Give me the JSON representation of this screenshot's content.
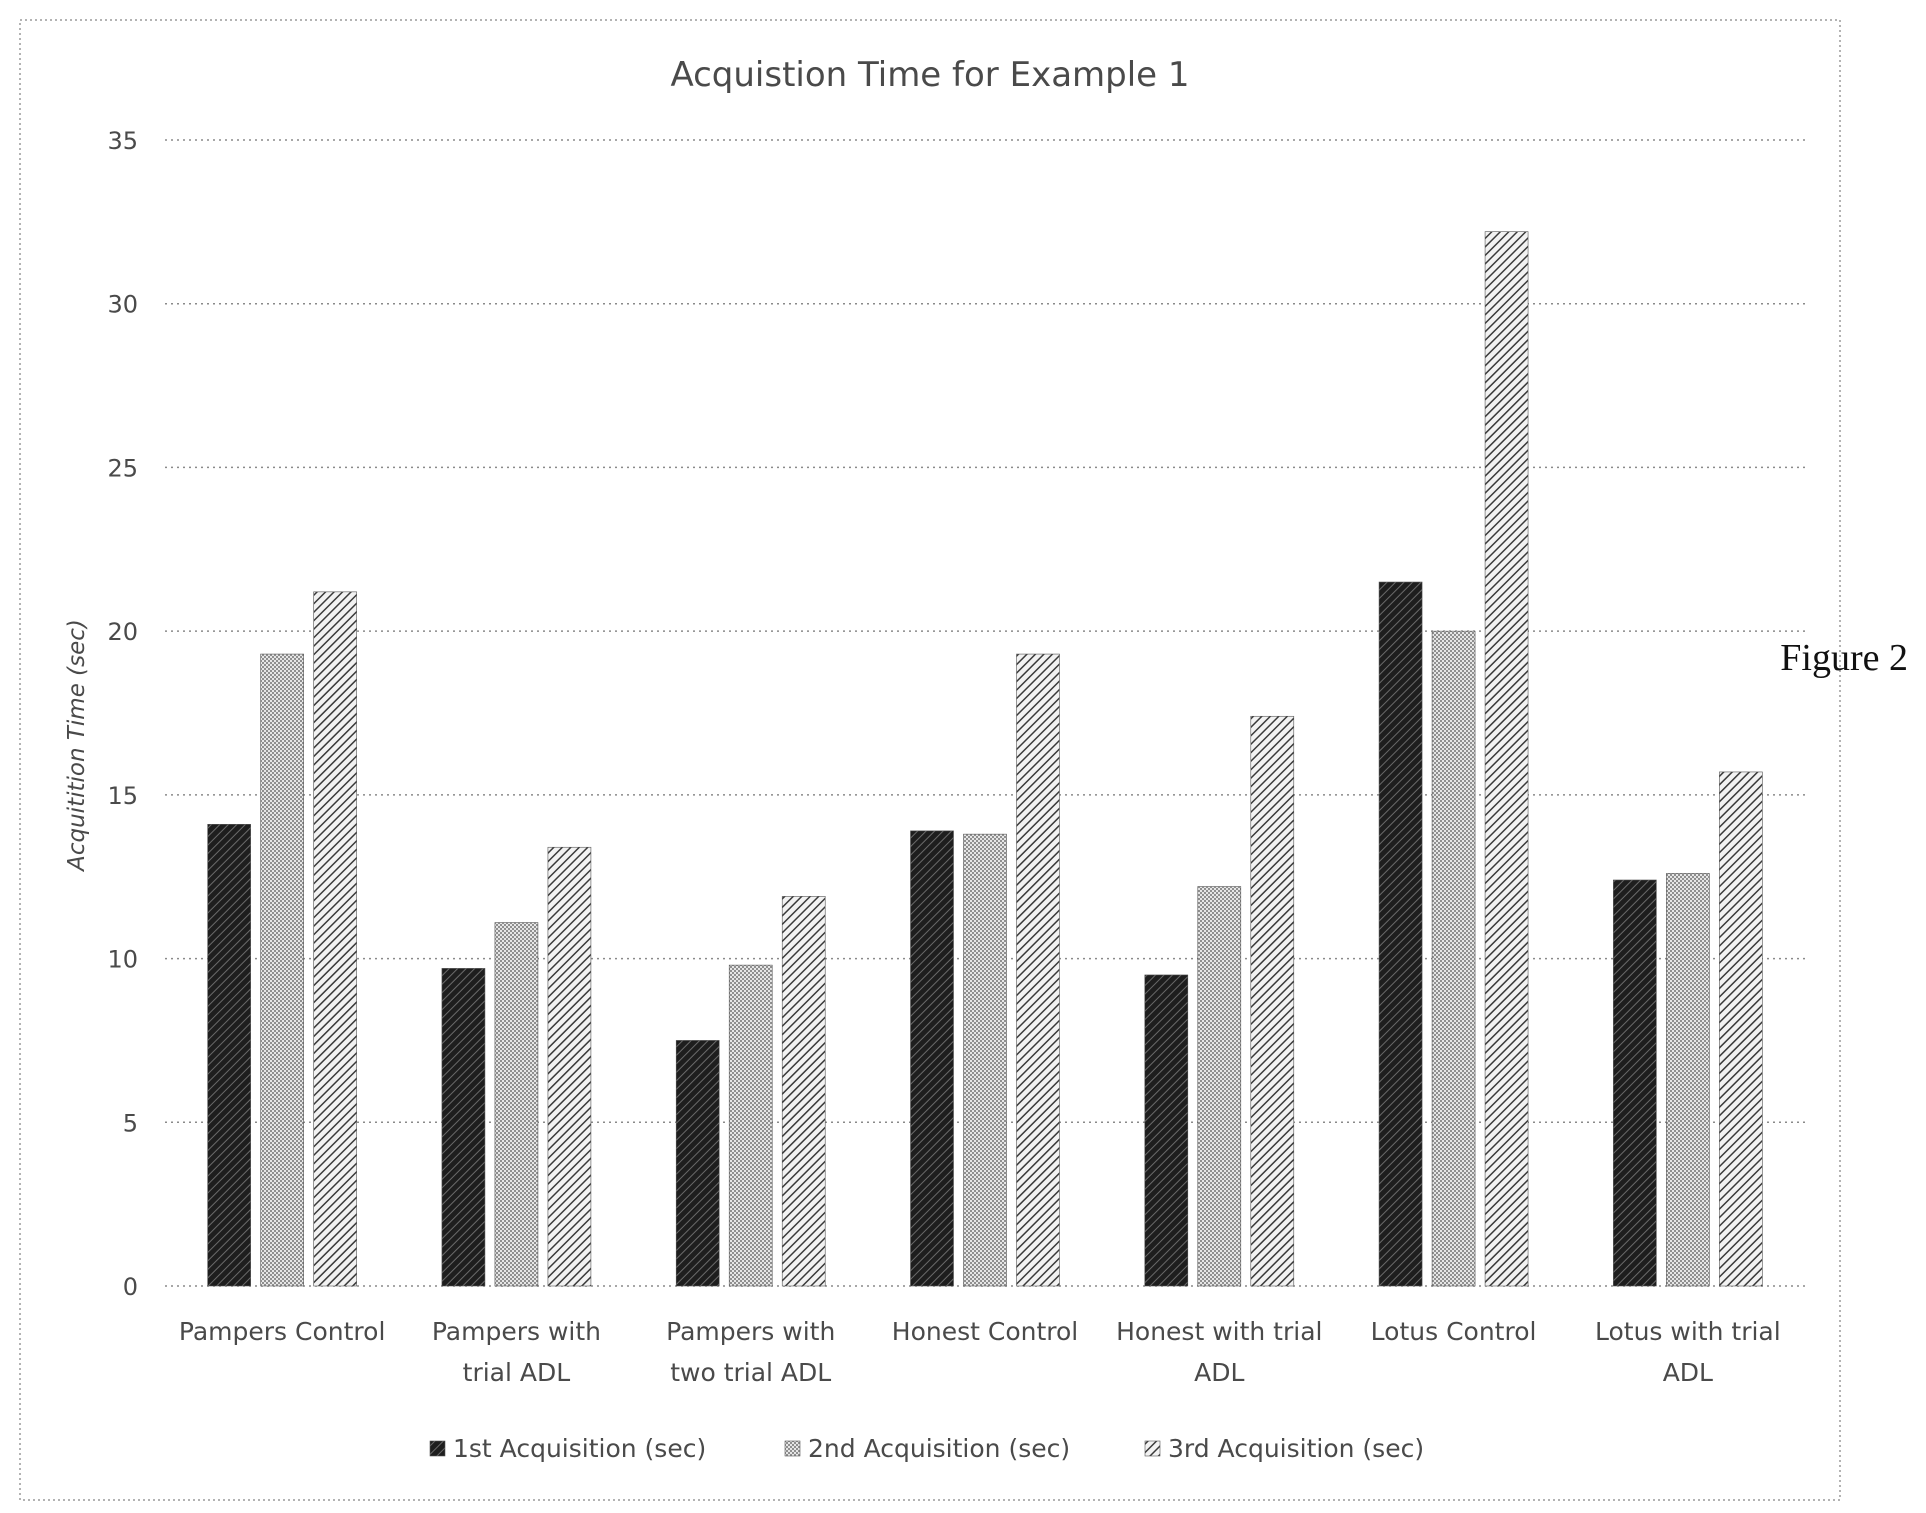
{
  "figure_label": "Figure 2",
  "colors": {
    "series1": "#3a3a3a",
    "series2": "#cfcfcf",
    "series3": "#666666",
    "grid": "#8a8a8a",
    "border": "#9a9a9a"
  },
  "chart_data": {
    "type": "bar",
    "title": "Acquistion Time for Example 1",
    "xlabel": "",
    "ylabel": "Acquitition Time (sec)",
    "ylim": [
      0,
      35
    ],
    "yticks": [
      "0",
      "5",
      "10",
      "15",
      "20",
      "25",
      "30",
      "35"
    ],
    "grid": true,
    "legend_position": "bottom",
    "categories": [
      [
        "Pampers Control"
      ],
      [
        "Pampers with",
        "trial ADL"
      ],
      [
        "Pampers with",
        "two trial ADL"
      ],
      [
        "Honest Control"
      ],
      [
        "Honest with trial",
        "ADL"
      ],
      [
        "Lotus Control"
      ],
      [
        "Lotus with trial",
        "ADL"
      ]
    ],
    "series": [
      {
        "name": "1st Acquisition (sec)",
        "values": [
          14.1,
          9.7,
          7.5,
          13.9,
          9.5,
          21.5,
          12.4
        ]
      },
      {
        "name": "2nd Acquisition (sec)",
        "values": [
          19.3,
          11.1,
          9.8,
          13.8,
          12.2,
          20.0,
          12.6
        ]
      },
      {
        "name": "3rd Acquisition (sec)",
        "values": [
          21.2,
          13.4,
          11.9,
          19.3,
          17.4,
          32.2,
          15.7
        ]
      }
    ]
  }
}
